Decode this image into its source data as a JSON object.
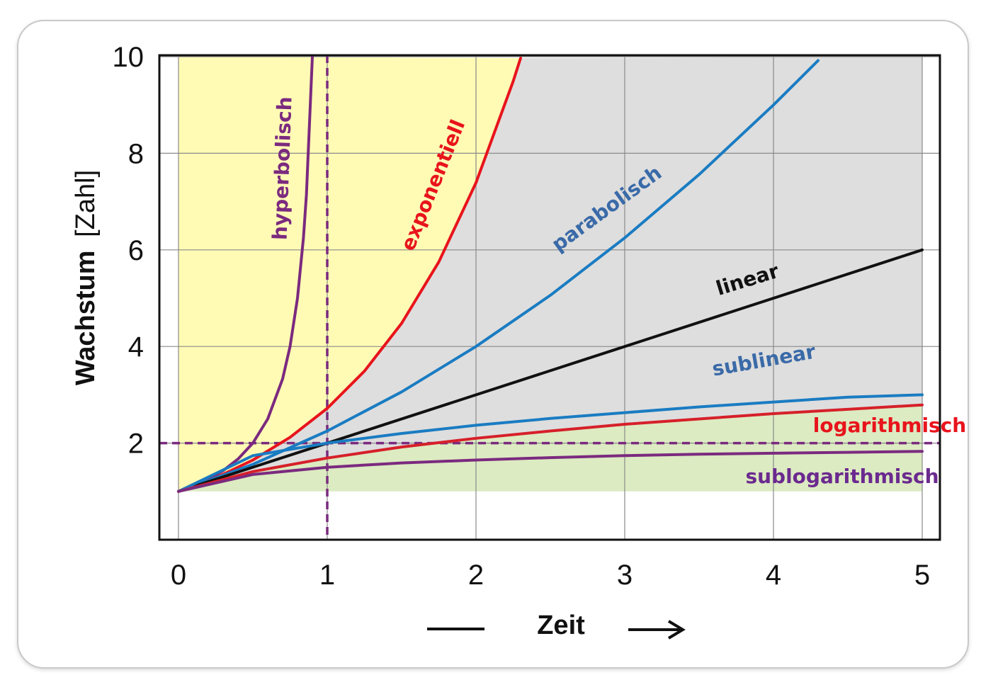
{
  "chart_data": {
    "type": "line",
    "xlabel": "Zeit",
    "ylabel": "Wachstum",
    "ylabel_unit": "[Zahl]",
    "xlim": [
      0,
      5
    ],
    "ylim": [
      0,
      10
    ],
    "xticks": [
      "0",
      "1",
      "2",
      "3",
      "4",
      "5"
    ],
    "yticks": [
      "2",
      "4",
      "6",
      "8",
      "10"
    ],
    "grid": true,
    "reference_lines": [
      {
        "axis": "x",
        "value": 1,
        "style": "dashed",
        "color": "#7b2a7f"
      },
      {
        "axis": "y",
        "value": 2,
        "style": "dashed",
        "color": "#7b2a7f"
      }
    ],
    "regions": [
      {
        "color": "#fffbb5",
        "description_hidden": true
      },
      {
        "color": "#dedede",
        "description_hidden": true
      },
      {
        "color": "#dcebc2",
        "description_hidden": true
      }
    ],
    "series": [
      {
        "name": "hyperbolisch",
        "color": "#7b2a7f",
        "x": [
          0,
          0.1,
          0.2,
          0.3,
          0.4,
          0.5,
          0.6,
          0.7,
          0.75,
          0.8,
          0.84,
          0.86,
          0.9
        ],
        "y": [
          1,
          1.11,
          1.25,
          1.43,
          1.67,
          2.0,
          2.5,
          3.33,
          4.0,
          5.0,
          6.25,
          7.14,
          10
        ]
      },
      {
        "name": "exponentiell",
        "color": "#e8141c",
        "x": [
          0,
          0.25,
          0.5,
          0.75,
          1.0,
          1.25,
          1.5,
          1.75,
          2.0,
          2.25,
          2.3
        ],
        "y": [
          1,
          1.28,
          1.65,
          2.12,
          2.72,
          3.49,
          4.48,
          5.75,
          7.39,
          9.49,
          9.97
        ]
      },
      {
        "name": "parabolisch",
        "color": "#1a7cc2",
        "x": [
          0,
          0.5,
          1.0,
          1.5,
          2.0,
          2.5,
          3.0,
          3.5,
          4.0,
          4.3
        ],
        "y": [
          1,
          1.56,
          2.25,
          3.06,
          4.0,
          5.06,
          6.25,
          7.56,
          9.0,
          9.92
        ]
      },
      {
        "name": "linear",
        "color": "#111111",
        "x": [
          0,
          5
        ],
        "y": [
          1,
          6
        ]
      },
      {
        "name": "sublinear",
        "color": "#1a7cc2",
        "x": [
          0,
          0.5,
          1.0,
          1.5,
          2.0,
          2.5,
          3.0,
          3.5,
          4.0,
          4.5,
          5.0
        ],
        "y": [
          1,
          1.74,
          2.0,
          2.2,
          2.37,
          2.51,
          2.63,
          2.75,
          2.85,
          2.95,
          3.0
        ]
      },
      {
        "name": "logarithmisch",
        "color": "#d6202a",
        "x": [
          0,
          0.5,
          1.0,
          1.5,
          2.0,
          2.5,
          3.0,
          3.5,
          4.0,
          4.5,
          5.0
        ],
        "y": [
          1,
          1.41,
          1.69,
          1.92,
          2.1,
          2.25,
          2.39,
          2.5,
          2.61,
          2.7,
          2.79
        ]
      },
      {
        "name": "sublogarithmisch",
        "color": "#7b2a7f",
        "x": [
          0,
          0.5,
          1.0,
          1.5,
          2.0,
          2.5,
          3.0,
          3.5,
          4.0,
          4.5,
          5.0
        ],
        "y": [
          1,
          1.35,
          1.5,
          1.59,
          1.65,
          1.7,
          1.74,
          1.77,
          1.79,
          1.81,
          1.83
        ]
      }
    ],
    "labels": {
      "hyperbolisch": {
        "text": "hyperbolisch",
        "color": "#7b2a7f"
      },
      "exponentiell": {
        "text": "exponentiell",
        "color": "#e8141c"
      },
      "parabolisch": {
        "text": "parabolisch",
        "color": "#3a6aa8"
      },
      "linear": {
        "text": "linear",
        "color": "#111111"
      },
      "sublinear": {
        "text": "sublinear",
        "color": "#3a6aa8"
      },
      "logarithmisch": {
        "text": "logarithmisch",
        "color": "#e8141c"
      },
      "sublogarithmisch": {
        "text": "sublogarithmisch",
        "color": "#6b2a8f"
      }
    }
  }
}
